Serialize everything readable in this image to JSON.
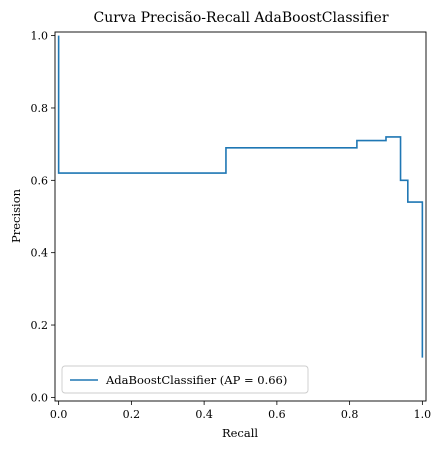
{
  "chart_data": {
    "type": "line",
    "title": "Curva Precisão-Recall AdaBoostClassifier",
    "xlabel": "Recall",
    "ylabel": "Precision",
    "xlim": [
      -0.01,
      1.01
    ],
    "ylim": [
      -0.01,
      1.01
    ],
    "xticks": [
      0.0,
      0.2,
      0.4,
      0.6,
      0.8,
      1.0
    ],
    "yticks": [
      0.0,
      0.2,
      0.4,
      0.6,
      0.8,
      1.0
    ],
    "xtick_labels": [
      "0.0",
      "0.2",
      "0.4",
      "0.6",
      "0.8",
      "1.0"
    ],
    "ytick_labels": [
      "0.0",
      "0.2",
      "0.4",
      "0.6",
      "0.8",
      "1.0"
    ],
    "grid": false,
    "legend_position": "lower-left",
    "color": "#1f77b4",
    "series": [
      {
        "name": "AdaBoostClassifier (AP = 0.66)",
        "drawstyle": "steps-post",
        "recall": [
          1.0,
          1.0,
          0.96,
          0.94,
          0.9,
          0.82,
          0.8,
          0.46,
          0.42,
          0.4,
          0.0,
          0.0
        ],
        "precision": [
          0.11,
          0.54,
          0.6,
          0.72,
          0.71,
          0.69,
          0.69,
          0.62,
          0.62,
          0.62,
          0.625,
          1.0
        ]
      }
    ]
  }
}
